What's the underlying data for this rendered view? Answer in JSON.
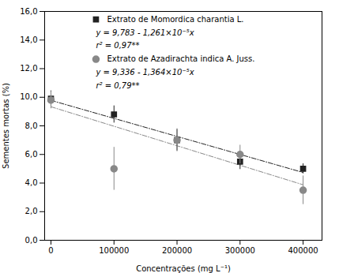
{
  "chart_data": {
    "type": "scatter",
    "xlabel": "Concentrações (mg L⁻¹)",
    "ylabel": "Sementes mortas (%)",
    "x": [
      0,
      100000,
      200000,
      300000,
      400000
    ],
    "series": [
      {
        "name": "Extrato de Momordica charantia L.",
        "color": "#222222",
        "marker": "square",
        "values": [
          9.9,
          8.8,
          7.0,
          5.5,
          5.0
        ],
        "errors": [
          0.55,
          0.6,
          0.75,
          0.55,
          0.35
        ]
      },
      {
        "name": "Extrato de Azadirachta indica A. Juss.",
        "color": "#888888",
        "marker": "circle",
        "values": [
          9.8,
          5.0,
          7.0,
          6.0,
          3.5
        ],
        "errors": [
          0.6,
          1.5,
          0.8,
          0.65,
          1.0
        ]
      },
      {
        "type": "line",
        "line_style": "dashdot",
        "color": "#222222",
        "x": [
          0,
          400000
        ],
        "values": [
          9.783,
          4.739
        ]
      },
      {
        "type": "line",
        "line_style": "dashdot",
        "color": "#888888",
        "x": [
          0,
          400000
        ],
        "values": [
          9.336,
          3.88
        ]
      }
    ],
    "annotations": [
      "y = 9,783 - 1,261×10⁻⁵x",
      "r² = 0,97**",
      "y = 9,336 - 1,364×10⁻⁵x",
      "r² = 0,79**"
    ],
    "xlim": [
      -10000,
      430000
    ],
    "ylim": [
      0.0,
      16.0
    ],
    "xticks": [
      0,
      100000,
      200000,
      300000,
      400000
    ],
    "yticks": [
      {
        "value": 0.0,
        "label": "0,0"
      },
      {
        "value": 2.0,
        "label": "2,0"
      },
      {
        "value": 4.0,
        "label": "4,0"
      },
      {
        "value": 6.0,
        "label": "6,0"
      },
      {
        "value": 8.0,
        "label": "8,0"
      },
      {
        "value": 10.0,
        "label": "10,0"
      },
      {
        "value": 12.0,
        "label": "12,0"
      },
      {
        "value": 14.0,
        "label": "14,0"
      },
      {
        "value": 16.0,
        "label": "16,0"
      }
    ]
  }
}
